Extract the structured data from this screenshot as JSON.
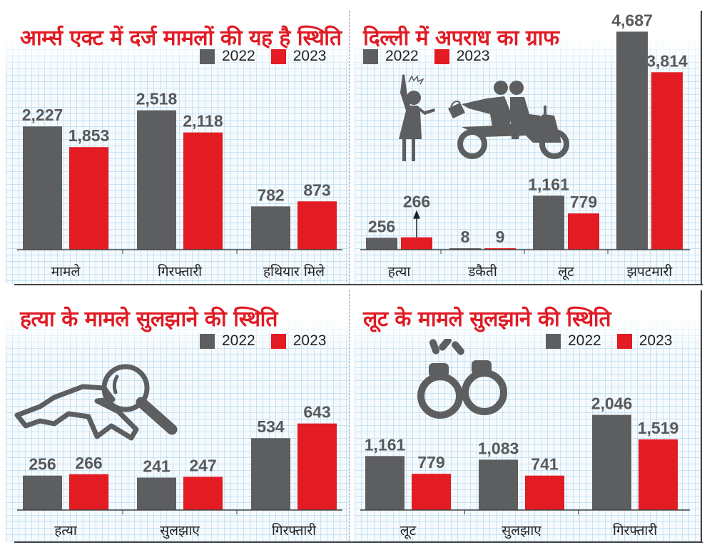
{
  "colors": {
    "y2022": "#5d5e60",
    "y2023": "#e31b23",
    "title": "#e01b24"
  },
  "legend": {
    "label_2022": "2022",
    "label_2023": "2023"
  },
  "chart_data": [
    {
      "type": "bar",
      "title": "आर्म्स एक्ट में दर्ज मामलों की यह है स्थिति",
      "categories": [
        "मामले",
        "गिरफ्तारी",
        "हथियार मिले"
      ],
      "series": [
        {
          "name": "2022",
          "values": [
            2227,
            2518,
            782
          ],
          "labels": [
            "2,227",
            "2,518",
            "782"
          ]
        },
        {
          "name": "2023",
          "values": [
            1853,
            2118,
            873
          ],
          "labels": [
            "1,853",
            "2,118",
            "873"
          ]
        }
      ],
      "ylim": [
        0,
        2900
      ],
      "legend_position": "top-right",
      "icon": null
    },
    {
      "type": "bar",
      "title": "दिल्ली में अपराध का ग्राफ",
      "categories": [
        "हत्या",
        "डकैती",
        "लूट",
        "झपटमारी"
      ],
      "series": [
        {
          "name": "2022",
          "values": [
            256,
            8,
            1161,
            4687
          ],
          "labels": [
            "256",
            "8",
            "1,161",
            "4,687"
          ]
        },
        {
          "name": "2023",
          "values": [
            266,
            9,
            779,
            3814
          ],
          "labels": [
            "266",
            "9",
            "779",
            "3,814"
          ]
        }
      ],
      "ylim": [
        0,
        4800
      ],
      "legend_position": "top-left",
      "annotations": [
        "up-arrow on हत्या 2023"
      ],
      "icon": "snatching-icon"
    },
    {
      "type": "bar",
      "title": "हत्या के मामले सुलझाने की स्थिति",
      "categories": [
        "हत्या",
        "सुलझाए",
        "गिरफ्तारी"
      ],
      "series": [
        {
          "name": "2022",
          "values": [
            256,
            241,
            534
          ],
          "labels": [
            "256",
            "241",
            "534"
          ]
        },
        {
          "name": "2023",
          "values": [
            266,
            247,
            643
          ],
          "labels": [
            "266",
            "247",
            "643"
          ]
        }
      ],
      "ylim": [
        0,
        1950
      ],
      "legend_position": "top-right",
      "icon": "magnifier-body-outline-icon"
    },
    {
      "type": "bar",
      "title": "लूट के मामले सुलझाने की स्थिति",
      "categories": [
        "लूट",
        "सुलझाए",
        "गिरफ्तारी"
      ],
      "series": [
        {
          "name": "2022",
          "values": [
            1161,
            1083,
            2046
          ],
          "labels": [
            "1,161",
            "1,083",
            "2,046"
          ]
        },
        {
          "name": "2023",
          "values": [
            779,
            741,
            1519
          ],
          "labels": [
            "779",
            "741",
            "1,519"
          ]
        }
      ],
      "ylim": [
        0,
        2500
      ],
      "legend_position": "top-right",
      "icon": "handcuffs-icon"
    }
  ]
}
